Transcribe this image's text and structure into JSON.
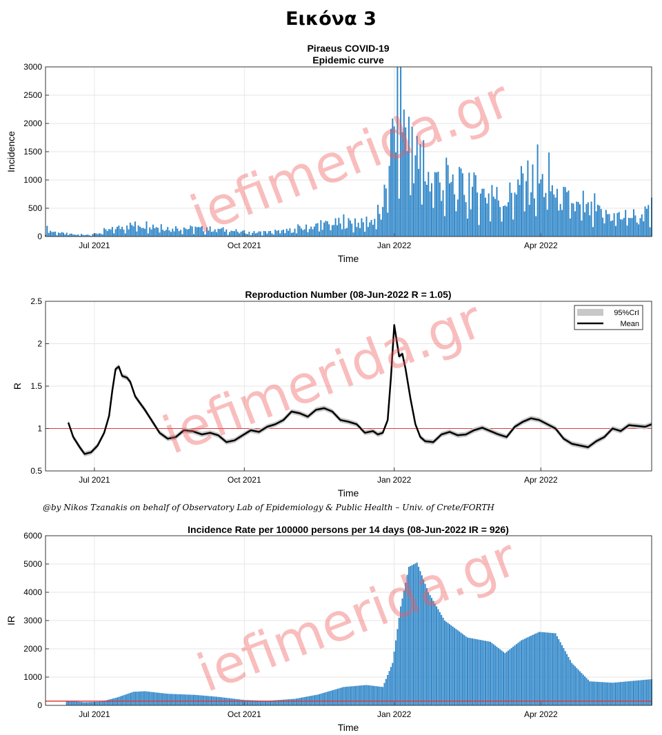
{
  "page_title": "Εικόνα 3",
  "credit": "@by Nikos Tzanakis on behalf of Observatory Lab of Epidemiology & Public Health – Univ. of Crete/FORTH",
  "watermark": "iefimerida.gr",
  "colors": {
    "bars": "#2f86c8",
    "mean": "#000000",
    "band": "#c8c8c8",
    "reference": "#e03a3a",
    "grid": "#e6e6e6"
  },
  "chart_data": [
    {
      "type": "bar",
      "title": "Piraeus COVID-19",
      "subtitle": "Epidemic curve",
      "xlabel": "Time",
      "ylabel": "Incidence",
      "x_range": [
        "2021-06-01",
        "2022-06-08"
      ],
      "ylim": [
        0,
        3000
      ],
      "yticks": [
        0,
        500,
        1000,
        1500,
        2000,
        2500,
        3000
      ],
      "ytick_labels": [
        "0",
        "500",
        "1000",
        "1500",
        "2000",
        "2500",
        "3000"
      ],
      "xticks": [
        {
          "date": "2021-07-01",
          "label": "Jul 2021"
        },
        {
          "date": "2021-10-01",
          "label": "Oct 2021"
        },
        {
          "date": "2022-01-01",
          "label": "Jan 2022"
        },
        {
          "date": "2022-04-01",
          "label": "Apr 2022"
        }
      ],
      "grid": true,
      "points": [
        [
          "2021-06-01",
          120
        ],
        [
          "2021-06-10",
          60
        ],
        [
          "2021-06-20",
          30
        ],
        [
          "2021-07-01",
          40
        ],
        [
          "2021-07-10",
          110
        ],
        [
          "2021-07-20",
          190
        ],
        [
          "2021-08-01",
          220
        ],
        [
          "2021-08-15",
          160
        ],
        [
          "2021-09-01",
          140
        ],
        [
          "2021-09-15",
          130
        ],
        [
          "2021-09-25",
          100
        ],
        [
          "2021-10-05",
          70
        ],
        [
          "2021-10-20",
          80
        ],
        [
          "2021-11-01",
          120
        ],
        [
          "2021-11-15",
          200
        ],
        [
          "2021-12-01",
          250
        ],
        [
          "2021-12-15",
          230
        ],
        [
          "2021-12-25",
          400
        ],
        [
          "2021-12-28",
          1200
        ],
        [
          "2021-12-31",
          1700
        ],
        [
          "2022-01-04",
          2300
        ],
        [
          "2022-01-08",
          2000
        ],
        [
          "2022-01-12",
          1600
        ],
        [
          "2022-01-20",
          1100
        ],
        [
          "2022-02-01",
          950
        ],
        [
          "2022-02-15",
          850
        ],
        [
          "2022-03-01",
          750
        ],
        [
          "2022-03-10",
          650
        ],
        [
          "2022-03-20",
          950
        ],
        [
          "2022-03-31",
          1000
        ],
        [
          "2022-04-10",
          800
        ],
        [
          "2022-04-20",
          560
        ],
        [
          "2022-05-01",
          460
        ],
        [
          "2022-05-20",
          350
        ],
        [
          "2022-06-08",
          420
        ]
      ]
    },
    {
      "type": "line",
      "title": "Reproduction Number (08-Jun-2022 R = 1.05)",
      "xlabel": "Time",
      "ylabel": "R",
      "x_range": [
        "2021-06-01",
        "2022-06-08"
      ],
      "ylim": [
        0.5,
        2.5
      ],
      "yticks": [
        0.5,
        1,
        1.5,
        2,
        2.5
      ],
      "ytick_labels": [
        "0.5",
        "1",
        "1.5",
        "2",
        "2.5"
      ],
      "xticks": [
        {
          "date": "2021-07-01",
          "label": "Jul 2021"
        },
        {
          "date": "2021-10-01",
          "label": "Oct 2021"
        },
        {
          "date": "2022-01-01",
          "label": "Jan 2022"
        },
        {
          "date": "2022-04-01",
          "label": "Apr 2022"
        }
      ],
      "reference_line": 1,
      "grid": true,
      "legend": {
        "placement": "top-right",
        "entries": [
          "95%CrI",
          "Mean"
        ]
      },
      "band_halfwidth": 0.03,
      "series": [
        {
          "name": "Mean",
          "points": [
            [
              "2021-06-15",
              1.07
            ],
            [
              "2021-06-18",
              0.9
            ],
            [
              "2021-06-22",
              0.78
            ],
            [
              "2021-06-25",
              0.7
            ],
            [
              "2021-06-29",
              0.72
            ],
            [
              "2021-07-03",
              0.8
            ],
            [
              "2021-07-07",
              0.95
            ],
            [
              "2021-07-10",
              1.15
            ],
            [
              "2021-07-12",
              1.45
            ],
            [
              "2021-07-14",
              1.7
            ],
            [
              "2021-07-16",
              1.73
            ],
            [
              "2021-07-18",
              1.62
            ],
            [
              "2021-07-21",
              1.6
            ],
            [
              "2021-07-23",
              1.55
            ],
            [
              "2021-07-26",
              1.38
            ],
            [
              "2021-07-29",
              1.3
            ],
            [
              "2021-08-01",
              1.22
            ],
            [
              "2021-08-05",
              1.1
            ],
            [
              "2021-08-10",
              0.95
            ],
            [
              "2021-08-15",
              0.88
            ],
            [
              "2021-08-20",
              0.9
            ],
            [
              "2021-08-25",
              0.98
            ],
            [
              "2021-08-30",
              0.97
            ],
            [
              "2021-09-05",
              0.93
            ],
            [
              "2021-09-10",
              0.95
            ],
            [
              "2021-09-15",
              0.92
            ],
            [
              "2021-09-20",
              0.84
            ],
            [
              "2021-09-25",
              0.86
            ],
            [
              "2021-09-30",
              0.92
            ],
            [
              "2021-10-05",
              0.98
            ],
            [
              "2021-10-10",
              0.96
            ],
            [
              "2021-10-15",
              1.02
            ],
            [
              "2021-10-20",
              1.05
            ],
            [
              "2021-10-25",
              1.1
            ],
            [
              "2021-10-30",
              1.2
            ],
            [
              "2021-11-04",
              1.18
            ],
            [
              "2021-11-09",
              1.14
            ],
            [
              "2021-11-14",
              1.22
            ],
            [
              "2021-11-19",
              1.24
            ],
            [
              "2021-11-24",
              1.2
            ],
            [
              "2021-11-29",
              1.1
            ],
            [
              "2021-12-04",
              1.08
            ],
            [
              "2021-12-09",
              1.05
            ],
            [
              "2021-12-14",
              0.95
            ],
            [
              "2021-12-19",
              0.97
            ],
            [
              "2021-12-22",
              0.93
            ],
            [
              "2021-12-25",
              0.95
            ],
            [
              "2021-12-28",
              1.1
            ],
            [
              "2021-12-30",
              1.6
            ],
            [
              "2022-01-01",
              2.22
            ],
            [
              "2022-01-02",
              2.1
            ],
            [
              "2022-01-04",
              1.85
            ],
            [
              "2022-01-06",
              1.88
            ],
            [
              "2022-01-08",
              1.7
            ],
            [
              "2022-01-11",
              1.35
            ],
            [
              "2022-01-14",
              1.05
            ],
            [
              "2022-01-17",
              0.9
            ],
            [
              "2022-01-20",
              0.85
            ],
            [
              "2022-01-25",
              0.84
            ],
            [
              "2022-01-30",
              0.93
            ],
            [
              "2022-02-04",
              0.96
            ],
            [
              "2022-02-09",
              0.92
            ],
            [
              "2022-02-14",
              0.93
            ],
            [
              "2022-02-19",
              0.98
            ],
            [
              "2022-02-24",
              1.01
            ],
            [
              "2022-03-01",
              0.97
            ],
            [
              "2022-03-06",
              0.93
            ],
            [
              "2022-03-11",
              0.9
            ],
            [
              "2022-03-16",
              1.02
            ],
            [
              "2022-03-21",
              1.08
            ],
            [
              "2022-03-26",
              1.12
            ],
            [
              "2022-03-31",
              1.1
            ],
            [
              "2022-04-05",
              1.05
            ],
            [
              "2022-04-10",
              1.0
            ],
            [
              "2022-04-15",
              0.88
            ],
            [
              "2022-04-20",
              0.82
            ],
            [
              "2022-04-25",
              0.8
            ],
            [
              "2022-04-30",
              0.78
            ],
            [
              "2022-05-05",
              0.85
            ],
            [
              "2022-05-10",
              0.9
            ],
            [
              "2022-05-15",
              1.0
            ],
            [
              "2022-05-20",
              0.97
            ],
            [
              "2022-05-25",
              1.04
            ],
            [
              "2022-05-30",
              1.03
            ],
            [
              "2022-06-04",
              1.02
            ],
            [
              "2022-06-08",
              1.05
            ]
          ]
        }
      ]
    },
    {
      "type": "bar",
      "title": "Incidence Rate per 100000 persons per 14 days (08-Jun-2022 IR = 926)",
      "xlabel": "Time",
      "ylabel": "IR",
      "x_range": [
        "2021-06-01",
        "2022-06-08"
      ],
      "ylim": [
        0,
        6000
      ],
      "yticks": [
        0,
        1000,
        2000,
        3000,
        4000,
        5000,
        6000
      ],
      "ytick_labels": [
        "0",
        "1000",
        "2000",
        "3000",
        "4000",
        "5000",
        "6000"
      ],
      "xticks": [
        {
          "date": "2021-07-01",
          "label": "Jul 2021"
        },
        {
          "date": "2021-10-01",
          "label": "Oct 2021"
        },
        {
          "date": "2022-01-01",
          "label": "Jan 2022"
        },
        {
          "date": "2022-04-01",
          "label": "Apr 2022"
        }
      ],
      "reference_line": 150,
      "grid": true,
      "points": [
        [
          "2021-06-14",
          160
        ],
        [
          "2021-06-25",
          110
        ],
        [
          "2021-07-05",
          130
        ],
        [
          "2021-07-15",
          280
        ],
        [
          "2021-07-25",
          480
        ],
        [
          "2021-08-01",
          500
        ],
        [
          "2021-08-15",
          410
        ],
        [
          "2021-09-01",
          370
        ],
        [
          "2021-09-15",
          300
        ],
        [
          "2021-10-01",
          190
        ],
        [
          "2021-10-15",
          160
        ],
        [
          "2021-11-01",
          230
        ],
        [
          "2021-11-15",
          380
        ],
        [
          "2021-12-01",
          650
        ],
        [
          "2021-12-15",
          720
        ],
        [
          "2021-12-25",
          650
        ],
        [
          "2021-12-31",
          1500
        ],
        [
          "2022-01-05",
          3500
        ],
        [
          "2022-01-10",
          4900
        ],
        [
          "2022-01-15",
          5050
        ],
        [
          "2022-01-22",
          4000
        ],
        [
          "2022-02-01",
          3000
        ],
        [
          "2022-02-15",
          2400
        ],
        [
          "2022-03-01",
          2250
        ],
        [
          "2022-03-10",
          1850
        ],
        [
          "2022-03-20",
          2300
        ],
        [
          "2022-03-31",
          2600
        ],
        [
          "2022-04-10",
          2550
        ],
        [
          "2022-04-20",
          1500
        ],
        [
          "2022-05-01",
          850
        ],
        [
          "2022-05-15",
          800
        ],
        [
          "2022-06-08",
          926
        ]
      ]
    }
  ]
}
